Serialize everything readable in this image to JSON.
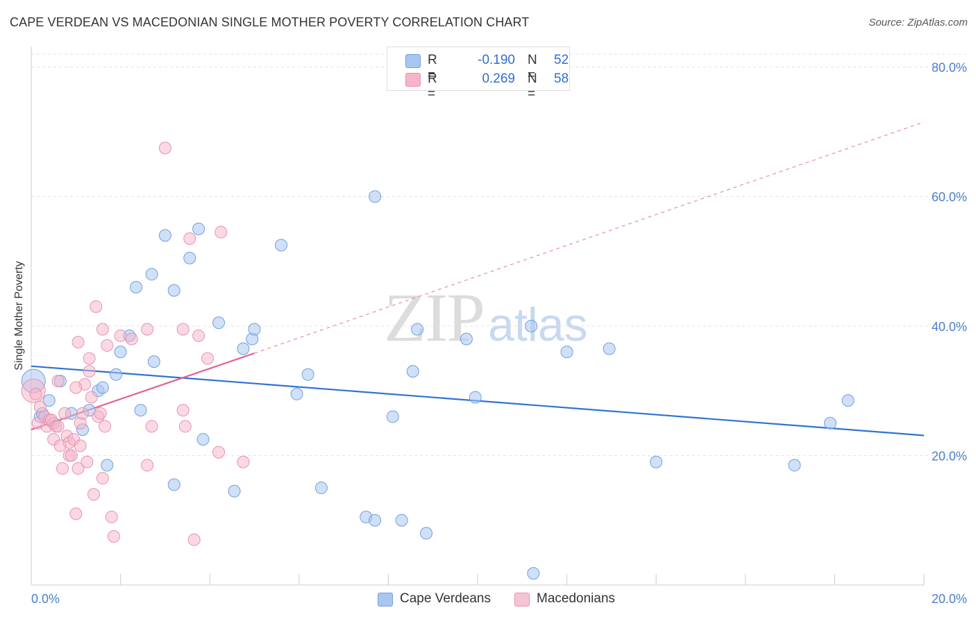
{
  "title": "CAPE VERDEAN VS MACEDONIAN SINGLE MOTHER POVERTY CORRELATION CHART",
  "source": "Source: ZipAtlas.com",
  "watermark": {
    "zip": "ZIP",
    "atlas": "atlas"
  },
  "legend": {
    "rows": [
      {
        "r_label": "R =",
        "r_value": "-0.190",
        "n_label": "N =",
        "n_value": "52",
        "color": "#a8c6f0"
      },
      {
        "r_label": "R =",
        "r_value": "0.269",
        "n_label": "N =",
        "n_value": "58",
        "color": "#f5b4c8"
      }
    ]
  },
  "bottom_legend": {
    "series_a": "Cape Verdeans",
    "series_b": "Macedonians"
  },
  "chart_data": {
    "type": "scatter",
    "title": "CAPE VERDEAN VS MACEDONIAN SINGLE MOTHER POVERTY CORRELATION CHART",
    "xlabel": "",
    "ylabel": "Single Mother Poverty",
    "xlim": [
      0,
      20
    ],
    "ylim": [
      0,
      82
    ],
    "x_ticks": [
      0,
      20
    ],
    "x_tick_labels": [
      "0.0%",
      "20.0%"
    ],
    "y_ticks": [
      20,
      40,
      60,
      80
    ],
    "y_tick_labels": [
      "20.0%",
      "40.0%",
      "60.0%",
      "80.0%"
    ],
    "grid": true,
    "legend_position": "top-center",
    "series": [
      {
        "name": "Cape Verdeans",
        "color": "#4a86d8",
        "fill": "#a8c6f0",
        "trend": {
          "x": [
            0,
            20
          ],
          "y": [
            33.8,
            23.1
          ],
          "style": "solid"
        },
        "points": [
          [
            0.05,
            31.5
          ],
          [
            0.2,
            26
          ],
          [
            0.25,
            26.5
          ],
          [
            0.4,
            28.5
          ],
          [
            0.5,
            25
          ],
          [
            0.65,
            31.5
          ],
          [
            0.9,
            26.5
          ],
          [
            1.15,
            24
          ],
          [
            1.3,
            27
          ],
          [
            1.5,
            30
          ],
          [
            1.6,
            30.5
          ],
          [
            1.7,
            18.5
          ],
          [
            1.9,
            32.5
          ],
          [
            2.0,
            36
          ],
          [
            2.2,
            38.5
          ],
          [
            2.35,
            46
          ],
          [
            2.45,
            27
          ],
          [
            2.7,
            48
          ],
          [
            2.75,
            34.5
          ],
          [
            3.0,
            54
          ],
          [
            3.2,
            45.5
          ],
          [
            3.2,
            15.5
          ],
          [
            3.55,
            50.5
          ],
          [
            3.75,
            55
          ],
          [
            3.85,
            22.5
          ],
          [
            4.2,
            40.5
          ],
          [
            4.55,
            14.5
          ],
          [
            4.75,
            36.5
          ],
          [
            4.95,
            38
          ],
          [
            5.0,
            39.5
          ],
          [
            5.6,
            52.5
          ],
          [
            5.95,
            29.5
          ],
          [
            6.2,
            32.5
          ],
          [
            6.5,
            15
          ],
          [
            7.5,
            10.5
          ],
          [
            7.7,
            10
          ],
          [
            7.7,
            60
          ],
          [
            8.1,
            26
          ],
          [
            8.3,
            10
          ],
          [
            8.55,
            33
          ],
          [
            8.65,
            39.5
          ],
          [
            8.85,
            8
          ],
          [
            9.75,
            38
          ],
          [
            9.95,
            29
          ],
          [
            11.2,
            40
          ],
          [
            11.25,
            1.8
          ],
          [
            12.0,
            36
          ],
          [
            12.95,
            36.5
          ],
          [
            14.0,
            19
          ],
          [
            17.1,
            18.5
          ],
          [
            17.9,
            25
          ],
          [
            18.3,
            28.5
          ]
        ]
      },
      {
        "name": "Macedonians",
        "color": "#e06090",
        "fill": "#f5b4c8",
        "trend": {
          "x": [
            0,
            5
          ],
          "y": [
            24,
            35.8
          ],
          "style": "solid",
          "extended": {
            "x": [
              5,
              20
            ],
            "y": [
              35.8,
              71.5
            ],
            "style": "dashed"
          }
        },
        "points": [
          [
            0.05,
            30
          ],
          [
            0.1,
            29.5
          ],
          [
            0.15,
            25
          ],
          [
            0.2,
            27.5
          ],
          [
            0.3,
            26
          ],
          [
            0.35,
            24.5
          ],
          [
            0.4,
            25.5
          ],
          [
            0.45,
            25.5
          ],
          [
            0.5,
            22.5
          ],
          [
            0.55,
            24.5
          ],
          [
            0.6,
            24.5
          ],
          [
            0.6,
            31.5
          ],
          [
            0.65,
            21.5
          ],
          [
            0.7,
            18
          ],
          [
            0.75,
            26.5
          ],
          [
            0.8,
            23
          ],
          [
            0.85,
            20
          ],
          [
            0.85,
            22
          ],
          [
            0.9,
            20
          ],
          [
            0.95,
            22.5
          ],
          [
            1.0,
            11
          ],
          [
            1.05,
            18
          ],
          [
            1.05,
            37.5
          ],
          [
            1.1,
            21.5
          ],
          [
            1.1,
            25
          ],
          [
            1.15,
            26.5
          ],
          [
            1.2,
            31
          ],
          [
            1.25,
            19
          ],
          [
            1.3,
            33
          ],
          [
            1.3,
            35
          ],
          [
            1.35,
            29
          ],
          [
            1.4,
            14
          ],
          [
            1.45,
            43
          ],
          [
            1.5,
            26
          ],
          [
            1.55,
            26.5
          ],
          [
            1.6,
            39.5
          ],
          [
            1.6,
            16.5
          ],
          [
            1.65,
            24.5
          ],
          [
            1.7,
            37
          ],
          [
            1.8,
            10.5
          ],
          [
            1.85,
            7.5
          ],
          [
            2.0,
            38.5
          ],
          [
            2.6,
            18.5
          ],
          [
            2.6,
            39.5
          ],
          [
            2.7,
            24.5
          ],
          [
            3.0,
            67.5
          ],
          [
            3.4,
            27
          ],
          [
            3.4,
            39.5
          ],
          [
            3.45,
            24.5
          ],
          [
            3.55,
            53.5
          ],
          [
            3.65,
            7
          ],
          [
            3.75,
            38.5
          ],
          [
            3.95,
            35
          ],
          [
            4.2,
            20.5
          ],
          [
            4.25,
            54.5
          ],
          [
            4.75,
            19
          ],
          [
            2.25,
            38
          ],
          [
            1.0,
            30.5
          ]
        ]
      }
    ]
  }
}
